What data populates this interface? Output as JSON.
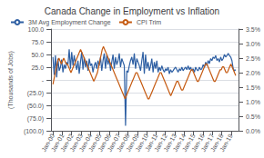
{
  "chart_data": {
    "type": "line",
    "title": "Canada Change in Employment vs Inflation",
    "ylabel": "(Thousands of Jobs)",
    "xlim": [
      1999.8,
      2019.8
    ],
    "xticks": [
      {
        "value": 2000,
        "label": "Jan-00"
      },
      {
        "value": 2001,
        "label": "Jan-01"
      },
      {
        "value": 2002,
        "label": "Jan-02"
      },
      {
        "value": 2003,
        "label": "Jan-03"
      },
      {
        "value": 2004,
        "label": "Jan-04"
      },
      {
        "value": 2005,
        "label": "Jan-05"
      },
      {
        "value": 2006,
        "label": "Jan-06"
      },
      {
        "value": 2007,
        "label": "Jan-07"
      },
      {
        "value": 2008,
        "label": "Jan-08"
      },
      {
        "value": 2009,
        "label": "Jan-09"
      },
      {
        "value": 2010,
        "label": "Jan-10"
      },
      {
        "value": 2011,
        "label": "Jan-11"
      },
      {
        "value": 2012,
        "label": "Jan-12"
      },
      {
        "value": 2013,
        "label": "Jan-13"
      },
      {
        "value": 2014,
        "label": "Jan-14"
      },
      {
        "value": 2015,
        "label": "Jan-15"
      },
      {
        "value": 2016,
        "label": "Jan-16"
      },
      {
        "value": 2017,
        "label": "Jan-17"
      },
      {
        "value": 2018,
        "label": "Jan-18"
      },
      {
        "value": 2019,
        "label": "Jan-19"
      }
    ],
    "ylim": [
      -100,
      100
    ],
    "yticks": [
      {
        "value": 100,
        "label": "100.0"
      },
      {
        "value": 75,
        "label": "75.0"
      },
      {
        "value": 50,
        "label": "50.0"
      },
      {
        "value": 25,
        "label": "25.0"
      },
      {
        "value": 0,
        "label": "-"
      },
      {
        "value": -25,
        "label": "(25.0)"
      },
      {
        "value": -50,
        "label": "(50.0)"
      },
      {
        "value": -75,
        "label": "(75.0)"
      },
      {
        "value": -100,
        "label": "(100.0)"
      }
    ],
    "y2lim": [
      0.0,
      3.5
    ],
    "y2ticks": [
      {
        "value": 0.0,
        "label": "0.0%"
      },
      {
        "value": 0.5,
        "label": "0.5%"
      },
      {
        "value": 1.0,
        "label": "1.0%"
      },
      {
        "value": 1.5,
        "label": "1.5%"
      },
      {
        "value": 2.0,
        "label": "2.0%"
      },
      {
        "value": 2.5,
        "label": "2.5%"
      },
      {
        "value": 3.0,
        "label": "3.0%"
      },
      {
        "value": 3.5,
        "label": "3.5%"
      }
    ],
    "grid": true,
    "legend": "upper left",
    "series": [
      {
        "name": "3M Avg Employment Change",
        "color": "#2e5fa3",
        "x": [
          2000,
          2000.1336,
          2000.2671,
          2000.4007,
          2000.5342,
          2000.6678,
          2000.8014,
          2000.9349,
          2001.0685,
          2001.2021,
          2001.3356,
          2001.4692,
          2001.6027,
          2001.7363,
          2001.8699,
          2002.0034,
          2002.137,
          2002.2705,
          2002.4041,
          2002.5377,
          2002.6712,
          2002.8048,
          2002.9384,
          2003.0719,
          2003.2055,
          2003.339,
          2003.4726,
          2003.6062,
          2003.7397,
          2003.8733,
          2004.0068,
          2004.1404,
          2004.274,
          2004.4075,
          2004.5411,
          2004.6747,
          2004.8082,
          2004.9418,
          2005.0753,
          2005.2089,
          2005.3425,
          2005.476,
          2005.6096,
          2005.7432,
          2005.8767,
          2006.0103,
          2006.1438,
          2006.2774,
          2006.411,
          2006.5445,
          2006.6781,
          2006.8116,
          2006.9452,
          2007.0788,
          2007.2123,
          2007.3459,
          2007.4795,
          2007.613,
          2007.7466,
          2007.8801,
          2008.0137,
          2008.1473,
          2008.2808,
          2008.4144,
          2008.5479,
          2008.6815,
          2008.8151,
          2008.9486,
          2009.0822,
          2009.2158,
          2009.3493,
          2009.4829,
          2009.6164,
          2009.75,
          2009.8836,
          2010.0171,
          2010.1507,
          2010.2842,
          2010.4178,
          2010.5514,
          2010.6849,
          2010.8185,
          2010.9521,
          2011.0856,
          2011.2192,
          2011.3527,
          2011.4863,
          2011.6199,
          2011.7534,
          2011.887,
          2012.0205,
          2012.1541,
          2012.2877,
          2012.4212,
          2012.5548,
          2012.6884,
          2012.8219,
          2012.9555,
          2013.089,
          2013.2226,
          2013.3562,
          2013.4897,
          2013.6233,
          2013.7568,
          2013.8904,
          2014.024,
          2014.1575,
          2014.2911,
          2014.4247,
          2014.5582,
          2014.6918,
          2014.8253,
          2014.9589,
          2015.0925,
          2015.226,
          2015.3596,
          2015.4932,
          2015.6267,
          2015.7603,
          2015.8938,
          2016.0274,
          2016.161,
          2016.2945,
          2016.4281,
          2016.5616,
          2016.6952,
          2016.8288,
          2016.9623,
          2017.0959,
          2017.2295,
          2017.363,
          2017.4966,
          2017.6301,
          2017.7637,
          2017.8973,
          2018.0308,
          2018.1644,
          2018.2979,
          2018.4315,
          2018.5651,
          2018.6986,
          2018.8322,
          2018.9658,
          2019.0993,
          2019.2329,
          2019.3664,
          2019.5
        ],
        "values": [
          45,
          10,
          48,
          5,
          42,
          18,
          25,
          40,
          15,
          30,
          22,
          35,
          30,
          60,
          22,
          55,
          28,
          48,
          32,
          20,
          38,
          12,
          35,
          55,
          20,
          45,
          25,
          38,
          18,
          42,
          28,
          32,
          15,
          28,
          35,
          22,
          38,
          28,
          45,
          18,
          38,
          52,
          22,
          48,
          30,
          42,
          18,
          35,
          50,
          22,
          45,
          30,
          38,
          52,
          25,
          42,
          35,
          28,
          -90,
          18,
          15,
          28,
          38,
          45,
          30,
          52,
          22,
          42,
          35,
          28,
          18,
          38,
          55,
          12,
          50,
          22,
          35,
          18,
          28,
          42,
          15,
          35,
          22,
          38,
          15,
          25,
          18,
          28,
          20,
          15,
          22,
          18,
          25,
          12,
          20,
          15,
          18,
          22,
          25,
          20,
          15,
          22,
          18,
          25,
          18,
          22,
          25,
          20,
          28,
          20,
          25,
          18,
          22,
          15,
          25,
          20,
          18,
          25,
          20,
          22,
          30,
          25,
          35,
          28,
          38,
          32,
          42,
          38,
          45,
          42,
          48,
          38,
          42,
          35,
          45,
          38,
          42,
          50,
          45,
          48,
          52,
          48,
          45,
          38,
          22,
          18,
          20
        ]
      },
      {
        "name": "CPI Trim",
        "color": "#c55a11",
        "axis": "y2",
        "x": [
          2000,
          2000.1283,
          2000.2566,
          2000.3849,
          2000.5132,
          2000.6414,
          2000.7697,
          2000.898,
          2001.0263,
          2001.1546,
          2001.2829,
          2001.4112,
          2001.5395,
          2001.6678,
          2001.7961,
          2001.9243,
          2002.0526,
          2002.1809,
          2002.3092,
          2002.4375,
          2002.5658,
          2002.6941,
          2002.8224,
          2002.9507,
          2003.0789,
          2003.2072,
          2003.3355,
          2003.4638,
          2003.5921,
          2003.7204,
          2003.8487,
          2003.977,
          2004.1053,
          2004.2336,
          2004.3618,
          2004.4901,
          2004.6184,
          2004.7467,
          2004.875,
          2005.0033,
          2005.1316,
          2005.2599,
          2005.3882,
          2005.5164,
          2005.6447,
          2005.773,
          2005.9013,
          2006.0296,
          2006.1579,
          2006.2862,
          2006.4145,
          2006.5428,
          2006.6711,
          2006.7993,
          2006.9276,
          2007.0559,
          2007.1842,
          2007.3125,
          2007.4408,
          2007.5691,
          2007.6974,
          2007.8257,
          2007.9539,
          2008.0822,
          2008.2105,
          2008.3388,
          2008.4671,
          2008.5954,
          2008.7237,
          2008.852,
          2008.9803,
          2009.1086,
          2009.2368,
          2009.3651,
          2009.4934,
          2009.6217,
          2009.75,
          2009.8783,
          2010.0066,
          2010.1349,
          2010.2632,
          2010.3914,
          2010.5197,
          2010.648,
          2010.7763,
          2010.9046,
          2011.0329,
          2011.1612,
          2011.2895,
          2011.4178,
          2011.5461,
          2011.6743,
          2011.8026,
          2011.9309,
          2012.0592,
          2012.1875,
          2012.3158,
          2012.4441,
          2012.5724,
          2012.7007,
          2012.8289,
          2012.9572,
          2013.0855,
          2013.2138,
          2013.3421,
          2013.4704,
          2013.5987,
          2013.727,
          2013.8553,
          2013.9836,
          2014.1118,
          2014.2401,
          2014.3684,
          2014.4967,
          2014.625,
          2014.7533,
          2014.8816,
          2015.0099,
          2015.1382,
          2015.2664,
          2015.3947,
          2015.523,
          2015.6513,
          2015.7796,
          2015.9079,
          2016.0362,
          2016.1645,
          2016.2928,
          2016.4211,
          2016.5493,
          2016.6776,
          2016.8059,
          2016.9342,
          2017.0625,
          2017.1908,
          2017.3191,
          2017.4474,
          2017.5757,
          2017.7039,
          2017.8322,
          2017.9605,
          2018.0888,
          2018.2171,
          2018.3454,
          2018.4737,
          2018.602,
          2018.7303,
          2018.8586,
          2018.9868,
          2019.1151,
          2019.2434,
          2019.3717,
          2019.5
        ],
        "values": [
          1.6,
          1.8,
          2.0,
          2.2,
          2.4,
          2.5,
          2.4,
          2.3,
          2.4,
          2.5,
          2.4,
          2.3,
          2.3,
          2.2,
          2.1,
          2.0,
          2.1,
          2.2,
          2.3,
          2.4,
          2.5,
          2.6,
          2.7,
          2.8,
          2.7,
          2.6,
          2.5,
          2.4,
          2.3,
          2.2,
          2.1,
          2.0,
          1.9,
          1.8,
          1.7,
          1.8,
          1.9,
          2.0,
          2.2,
          2.4,
          2.6,
          2.8,
          2.9,
          2.8,
          2.7,
          2.6,
          2.5,
          2.4,
          2.3,
          2.2,
          2.1,
          2.0,
          1.9,
          1.8,
          1.7,
          1.6,
          1.5,
          1.4,
          1.3,
          1.2,
          1.1,
          1.2,
          1.3,
          1.4,
          1.5,
          1.6,
          1.7,
          1.8,
          1.9,
          2.0,
          2.0,
          1.9,
          1.8,
          1.7,
          1.6,
          1.5,
          1.4,
          1.3,
          1.2,
          1.1,
          1.1,
          1.2,
          1.3,
          1.4,
          1.5,
          1.6,
          1.7,
          1.8,
          1.9,
          2.0,
          2.0,
          1.9,
          1.8,
          1.7,
          1.6,
          1.5,
          1.4,
          1.3,
          1.2,
          1.3,
          1.4,
          1.5,
          1.6,
          1.7,
          1.7,
          1.6,
          1.5,
          1.4,
          1.4,
          1.5,
          1.6,
          1.7,
          1.8,
          1.9,
          2.0,
          2.1,
          2.1,
          2.0,
          1.9,
          1.8,
          1.7,
          1.7,
          1.8,
          1.9,
          2.0,
          2.1,
          2.2,
          2.3,
          2.3,
          2.2,
          2.1,
          2.0,
          1.9,
          1.8,
          1.7,
          1.7,
          1.8,
          1.9,
          2.0,
          2.1,
          2.1,
          2.2,
          2.2,
          2.1,
          2.0,
          2.0,
          2.1,
          2.2,
          2.3,
          2.2,
          2.1,
          2.0,
          1.9
        ]
      }
    ]
  }
}
